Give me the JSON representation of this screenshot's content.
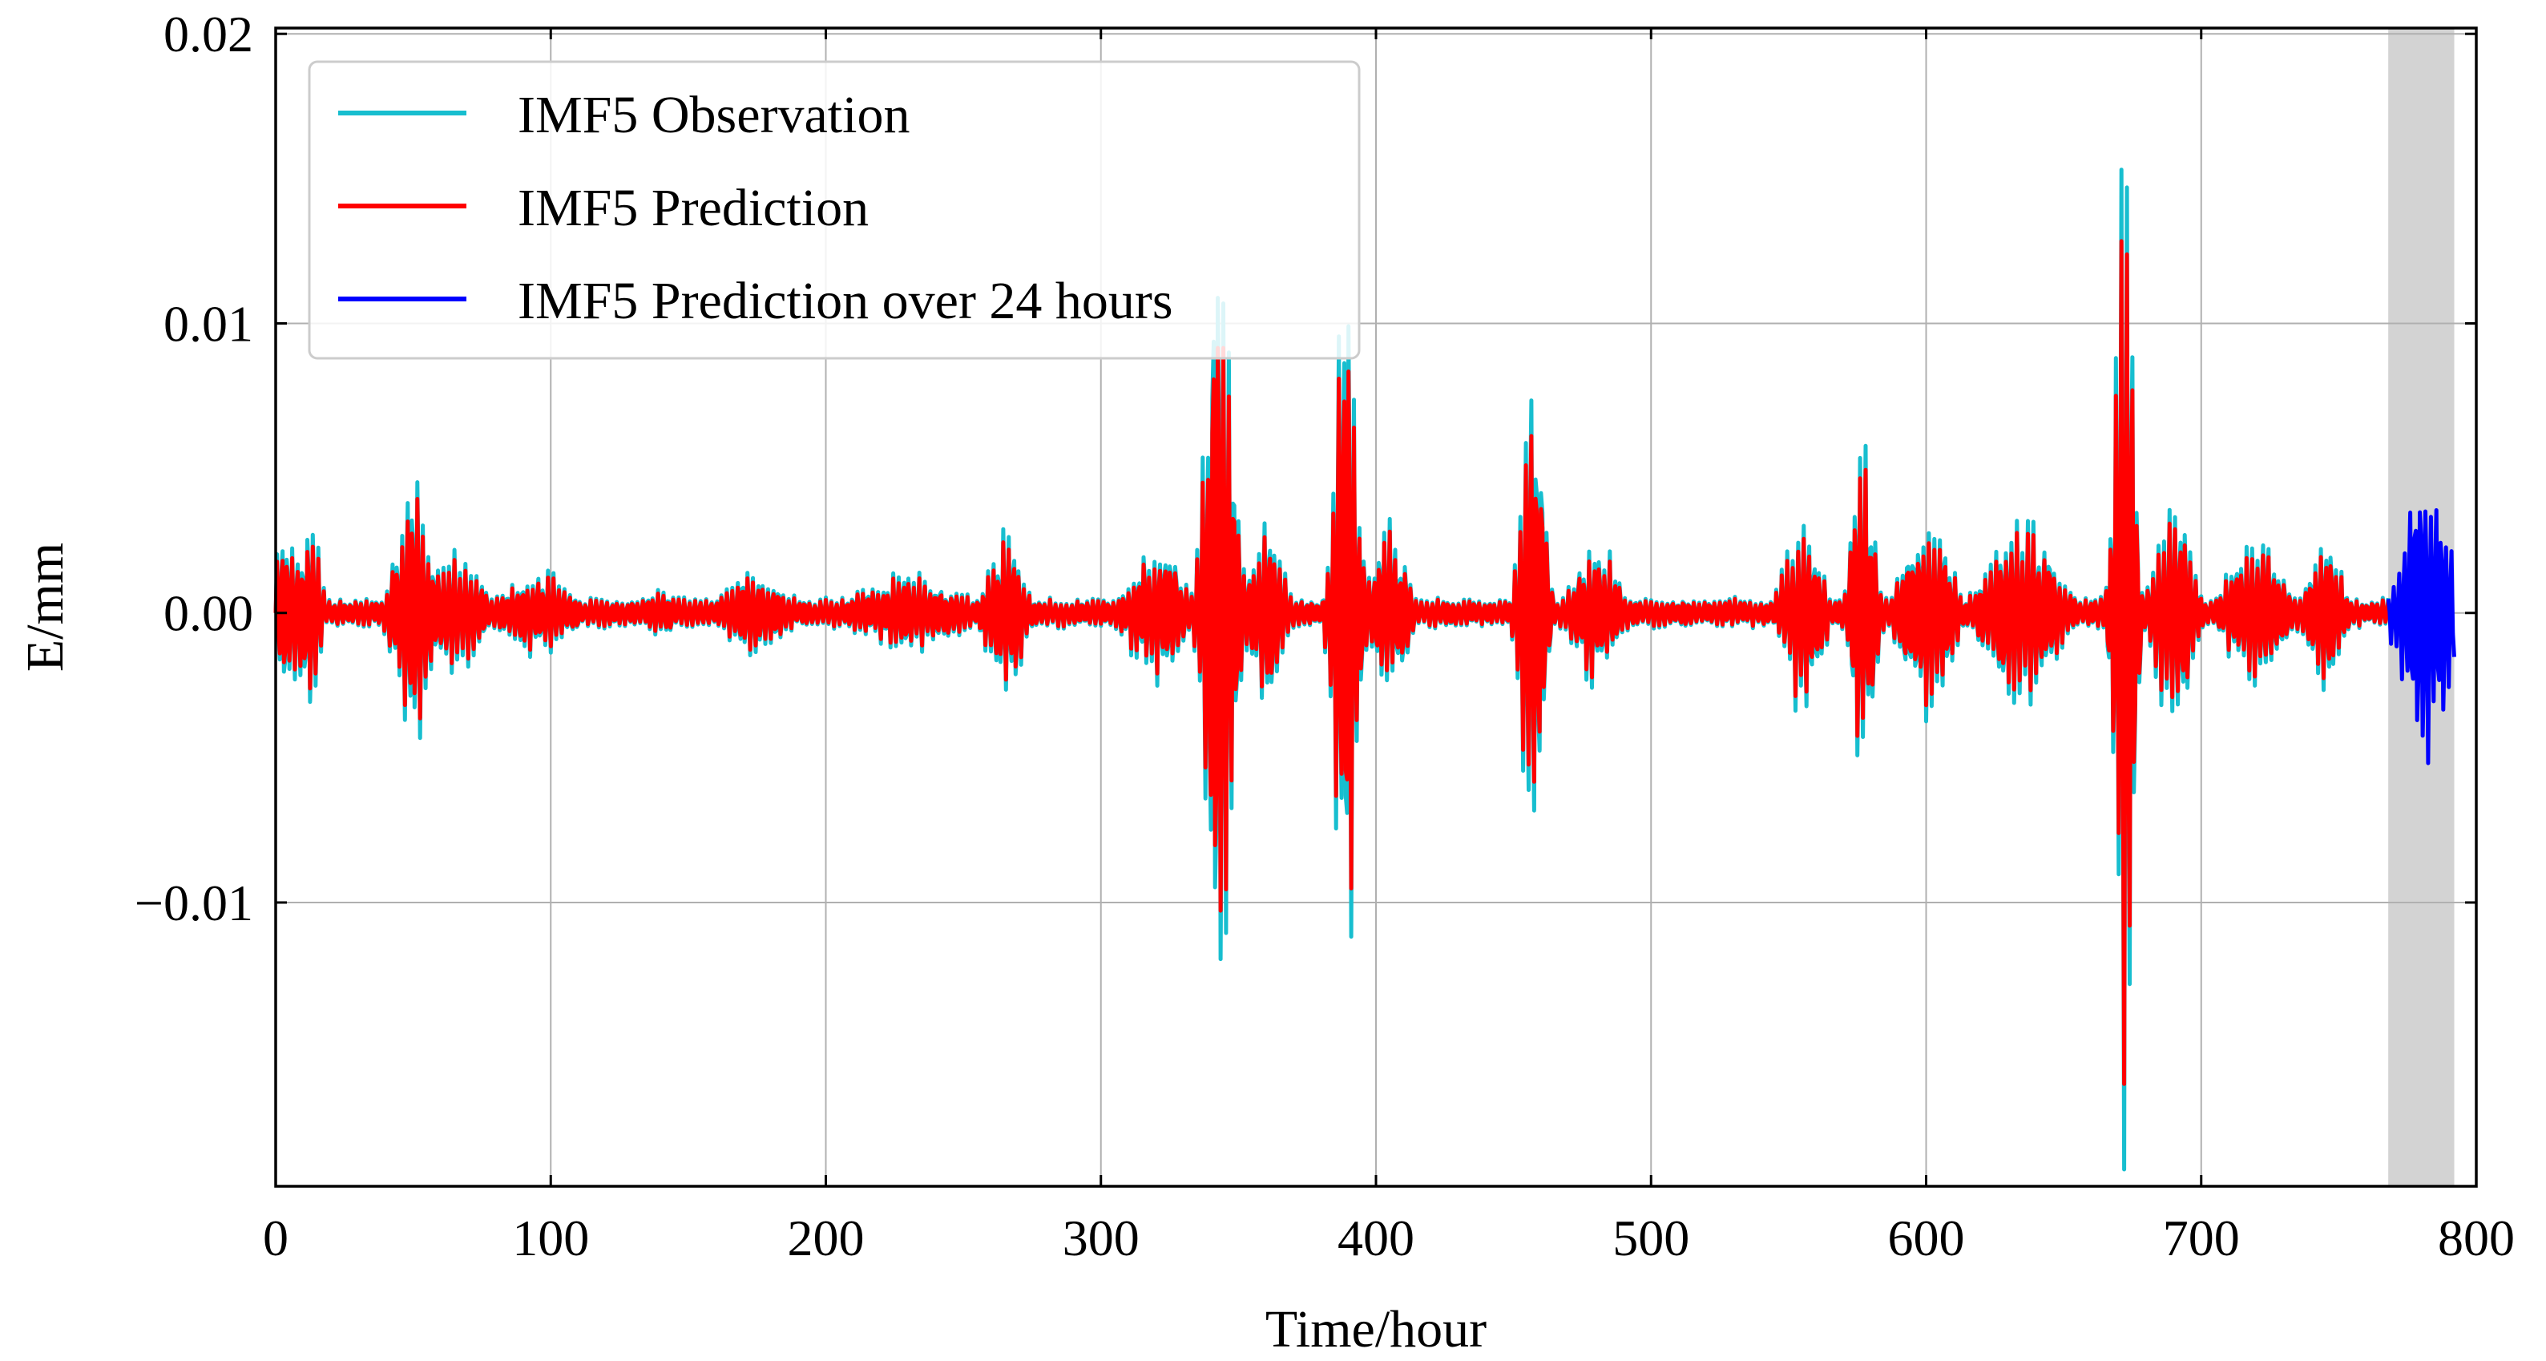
{
  "chart_data": {
    "type": "line",
    "title": "",
    "xlabel": "Time/hour",
    "ylabel": "E/mm",
    "xlim": [
      0,
      800
    ],
    "ylim": [
      -0.0198,
      0.0202
    ],
    "x_ticks": [
      0,
      100,
      200,
      300,
      400,
      500,
      600,
      700,
      800
    ],
    "x_tick_labels": [
      "0",
      "100",
      "200",
      "300",
      "400",
      "500",
      "600",
      "700",
      "800"
    ],
    "y_ticks": [
      -0.01,
      0.0,
      0.01,
      0.02
    ],
    "y_tick_labels": [
      "−0.01",
      "0.00",
      "0.01",
      "0.02"
    ],
    "grid": true,
    "legend_position": "top-left",
    "highlight_region": {
      "x_start": 768,
      "x_end": 792,
      "color": "#d3d3d3"
    },
    "sampling_interval_hours": 0.5,
    "envelope_bursts": [
      {
        "center": 5,
        "width": 8,
        "amplitude": 0.003
      },
      {
        "center": 13,
        "width": 4,
        "amplitude": 0.0035
      },
      {
        "center": 50,
        "width": 8,
        "amplitude": 0.0045
      },
      {
        "center": 65,
        "width": 12,
        "amplitude": 0.0022
      },
      {
        "center": 95,
        "width": 15,
        "amplitude": 0.0015
      },
      {
        "center": 140,
        "width": 10,
        "amplitude": 0.0008
      },
      {
        "center": 175,
        "width": 15,
        "amplitude": 0.0014
      },
      {
        "center": 230,
        "width": 25,
        "amplitude": 0.0013
      },
      {
        "center": 265,
        "width": 8,
        "amplitude": 0.003
      },
      {
        "center": 320,
        "width": 12,
        "amplitude": 0.0025
      },
      {
        "center": 343,
        "width": 6,
        "amplitude": 0.0135
      },
      {
        "center": 360,
        "width": 8,
        "amplitude": 0.003
      },
      {
        "center": 389,
        "width": 5,
        "amplitude": 0.0125
      },
      {
        "center": 405,
        "width": 8,
        "amplitude": 0.003
      },
      {
        "center": 457,
        "width": 5,
        "amplitude": 0.0085
      },
      {
        "center": 480,
        "width": 10,
        "amplitude": 0.0025
      },
      {
        "center": 555,
        "width": 8,
        "amplitude": 0.0035
      },
      {
        "center": 577,
        "width": 5,
        "amplitude": 0.0058
      },
      {
        "center": 600,
        "width": 10,
        "amplitude": 0.0038
      },
      {
        "center": 635,
        "width": 15,
        "amplitude": 0.0032
      },
      {
        "center": 672,
        "width": 4,
        "amplitude": 0.0185
      },
      {
        "center": 690,
        "width": 8,
        "amplitude": 0.004
      },
      {
        "center": 720,
        "width": 12,
        "amplitude": 0.0028
      },
      {
        "center": 745,
        "width": 8,
        "amplitude": 0.0025
      },
      {
        "center": 782,
        "width": 10,
        "amplitude": 0.0055
      }
    ],
    "envelope_baseline": 0.0005,
    "series": [
      {
        "name": "IMF5 Observation",
        "color": "#17becf",
        "x_range": [
          0,
          768
        ]
      },
      {
        "name": "IMF5 Prediction",
        "color": "#ff0000",
        "x_range": [
          0,
          768
        ]
      },
      {
        "name": "IMF5 Prediction over 24 hours",
        "color": "#0000ff",
        "x_range": [
          768,
          792
        ]
      }
    ]
  }
}
